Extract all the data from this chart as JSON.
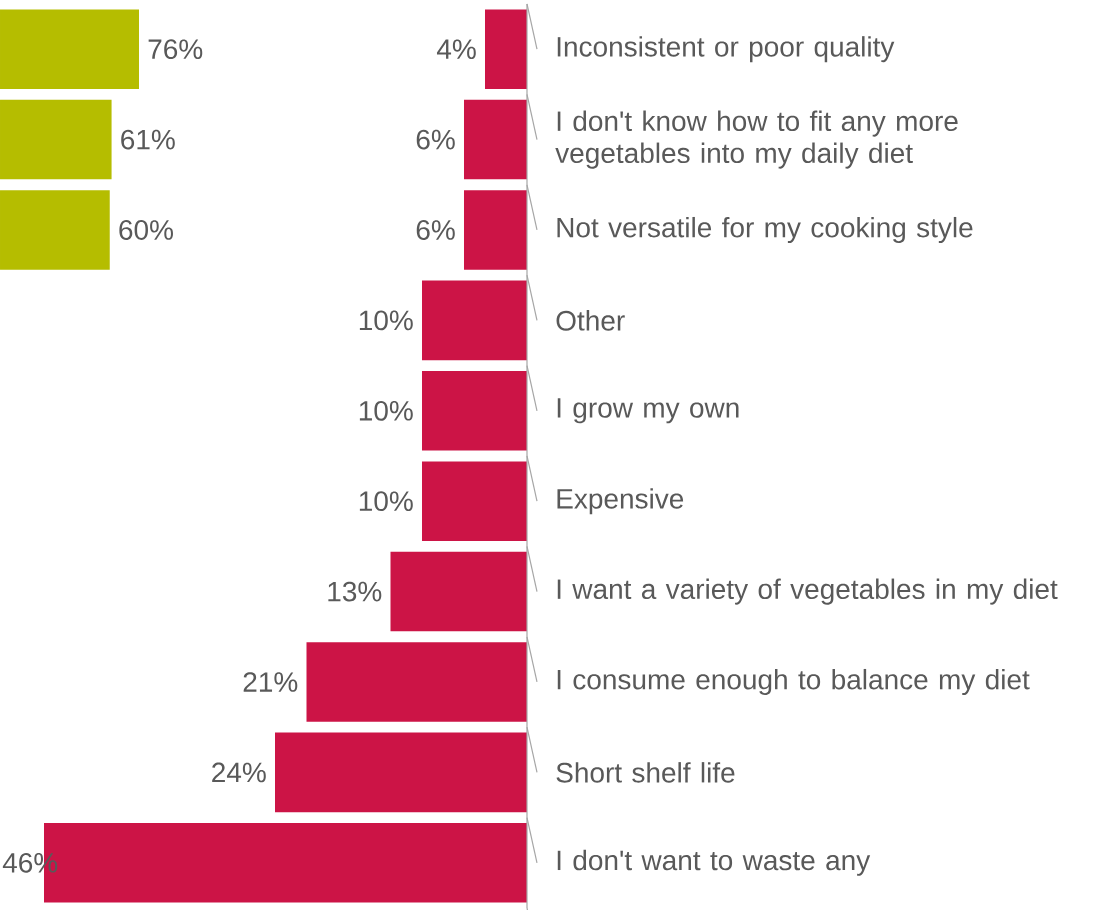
{
  "chart_data": [
    {
      "type": "bar",
      "orientation": "horizontal",
      "categories": [
        null,
        null,
        null
      ],
      "values": [
        76,
        61,
        60
      ],
      "value_labels": [
        "76%",
        "61%",
        "60%"
      ],
      "color": "#b5bd00"
    },
    {
      "type": "bar",
      "orientation": "horizontal",
      "xlim": [
        46,
        0
      ],
      "categories": [
        "Inconsistent or poor quality",
        "I don't know how to fit any more vegetables into my daily diet",
        "Not versatile for my cooking style",
        "Other",
        "I grow my own",
        "Expensive",
        "I want a variety of vegetables in my diet",
        "I consume enough to balance my diet",
        "Short shelf life",
        "I don't want to waste any"
      ],
      "values": [
        4,
        6,
        6,
        10,
        10,
        10,
        13,
        21,
        24,
        46
      ],
      "value_labels": [
        "4%",
        "6%",
        "6%",
        "10%",
        "10%",
        "10%",
        "13%",
        "21%",
        "24%",
        "46%"
      ],
      "color": "#cc1446"
    }
  ]
}
